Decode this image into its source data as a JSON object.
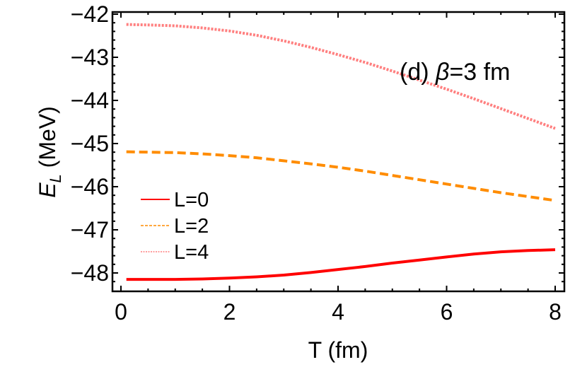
{
  "chart_data": {
    "type": "line",
    "title": "",
    "annotation": "(d) β=3 fm",
    "annotation_parts": {
      "prefix": "(d) ",
      "symbol": "β",
      "suffix": "=3 fm"
    },
    "xlabel": "T (fm)",
    "ylabel": "E_L (MeV)",
    "ylabel_parts": {
      "main": "E",
      "sub": "L",
      "unit": " (MeV)"
    },
    "xlim": [
      -0.1,
      8.15
    ],
    "ylim": [
      -48.45,
      -41.95
    ],
    "x_ticks": [
      0,
      2,
      4,
      6,
      8
    ],
    "x_tick_labels": [
      "0",
      "2",
      "4",
      "6",
      "8"
    ],
    "y_ticks": [
      -42,
      -43,
      -44,
      -45,
      -46,
      -47,
      -48
    ],
    "y_tick_labels": [
      "−42",
      "−43",
      "−44",
      "−45",
      "−46",
      "−47",
      "−48"
    ],
    "grid": false,
    "legend_position": "left-middle",
    "x": [
      0.1,
      0.5,
      1,
      1.5,
      2,
      2.5,
      3,
      3.5,
      4,
      4.5,
      5,
      5.5,
      6,
      6.5,
      7,
      7.5,
      8
    ],
    "series": [
      {
        "name": "L=0",
        "color": "#ff0000",
        "style": "solid",
        "values": [
          -48.15,
          -48.15,
          -48.15,
          -48.14,
          -48.12,
          -48.09,
          -48.05,
          -47.99,
          -47.92,
          -47.85,
          -47.77,
          -47.7,
          -47.63,
          -47.56,
          -47.51,
          -47.48,
          -47.46
        ]
      },
      {
        "name": "L=2",
        "color": "#ff8c00",
        "style": "dashed",
        "values": [
          -45.19,
          -45.2,
          -45.21,
          -45.24,
          -45.28,
          -45.33,
          -45.4,
          -45.47,
          -45.55,
          -45.64,
          -45.74,
          -45.84,
          -45.94,
          -46.04,
          -46.14,
          -46.23,
          -46.32
        ]
      },
      {
        "name": "L=4",
        "color": "#ff7f7f",
        "style": "dotted",
        "values": [
          -42.24,
          -42.25,
          -42.27,
          -42.32,
          -42.39,
          -42.49,
          -42.62,
          -42.77,
          -42.94,
          -43.12,
          -43.32,
          -43.53,
          -43.74,
          -43.96,
          -44.19,
          -44.42,
          -44.65
        ]
      }
    ]
  }
}
